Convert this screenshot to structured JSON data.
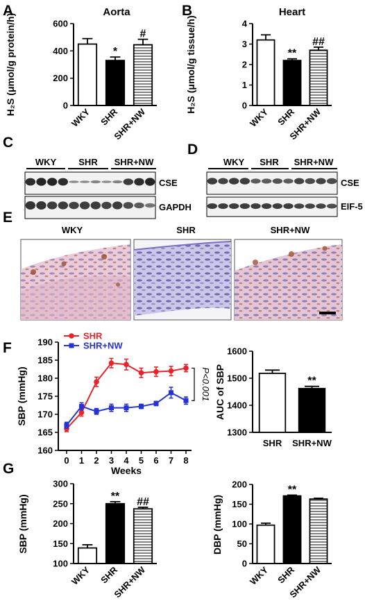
{
  "panels": {
    "A": "A",
    "B": "B",
    "C": "C",
    "D": "D",
    "E": "E",
    "F": "F",
    "G": "G"
  },
  "chart_data": [
    {
      "panel": "A",
      "type": "bar",
      "title": "Aorta",
      "ylabel": "H₂S (μmol/g protein/h)",
      "categories": [
        "WKY",
        "SHR",
        "SHR+NW"
      ],
      "values": [
        450,
        330,
        445
      ],
      "errors": [
        40,
        25,
        40
      ],
      "fills": [
        "open",
        "solid",
        "hatched"
      ],
      "ylim": [
        0,
        600
      ],
      "yticks": [
        "0",
        "200",
        "400",
        "600"
      ],
      "ytick_values": [
        0,
        200,
        400,
        600
      ],
      "significance": [
        "",
        "*",
        "#"
      ]
    },
    {
      "panel": "B",
      "type": "bar",
      "title": "Heart",
      "ylabel": "H₂S (μmol/g tissue/h)",
      "categories": [
        "WKY",
        "SHR",
        "SHR+NW"
      ],
      "values": [
        3.2,
        2.2,
        2.7
      ],
      "errors": [
        0.25,
        0.08,
        0.15
      ],
      "fills": [
        "open",
        "solid",
        "hatched"
      ],
      "ylim": [
        0,
        4
      ],
      "yticks": [
        "0",
        "1",
        "2",
        "3",
        "4"
      ],
      "ytick_values": [
        0,
        1,
        2,
        3,
        4
      ],
      "significance": [
        "",
        "**",
        "##"
      ]
    },
    {
      "panel": "F",
      "type": "line",
      "xlabel": "Weeks",
      "ylabel": "SBP (mmHg)",
      "x": [
        0,
        1,
        2,
        3,
        4,
        5,
        6,
        7,
        8
      ],
      "xticks": [
        "0",
        "1",
        "2",
        "3",
        "4",
        "5",
        "6",
        "7",
        "8"
      ],
      "ylim": [
        160,
        190
      ],
      "yticks": [
        "160",
        "165",
        "170",
        "175",
        "180",
        "185",
        "190"
      ],
      "ytick_values": [
        160,
        165,
        170,
        175,
        180,
        185,
        190
      ],
      "series": [
        {
          "name": "SHR",
          "color": "#e8232a",
          "values": [
            166.0,
            170.5,
            179.0,
            184.2,
            183.8,
            181.5,
            181.8,
            182.0,
            182.8
          ],
          "errors": [
            0.8,
            1.0,
            1.3,
            1.3,
            1.5,
            1.3,
            1.3,
            1.3,
            1.0
          ]
        },
        {
          "name": "SHR+NW",
          "color": "#2533d6",
          "values": [
            167.0,
            172.2,
            170.8,
            171.8,
            171.8,
            172.2,
            173.0,
            176.0,
            173.8
          ],
          "errors": [
            0.8,
            1.0,
            0.8,
            1.0,
            1.0,
            0.6,
            0.6,
            1.5,
            1.0
          ]
        }
      ],
      "annotation": "P<0.001"
    },
    {
      "panel": "F-right",
      "type": "bar",
      "ylabel": "AUC of SBP",
      "categories": [
        "SHR",
        "SHR+NW"
      ],
      "values": [
        1518,
        1462
      ],
      "errors": [
        12,
        8
      ],
      "fills": [
        "open",
        "solid"
      ],
      "ylim": [
        1300,
        1600
      ],
      "yticks": [
        "1300",
        "1400",
        "1500",
        "1600"
      ],
      "ytick_values": [
        1300,
        1400,
        1500,
        1600
      ],
      "significance": [
        "",
        "**"
      ]
    },
    {
      "panel": "G",
      "type": "bar",
      "ylabel": "SBP (mmHg)",
      "categories": [
        "WKY",
        "SHR",
        "SHR+NW"
      ],
      "values": [
        139,
        250,
        237
      ],
      "errors": [
        8,
        5,
        4
      ],
      "fills": [
        "open",
        "solid",
        "hatched"
      ],
      "ylim": [
        100,
        300
      ],
      "yticks": [
        "100",
        "150",
        "200",
        "250",
        "300"
      ],
      "ytick_values": [
        100,
        150,
        200,
        250,
        300
      ],
      "significance": [
        "",
        "**",
        "##"
      ]
    },
    {
      "panel": "G-right",
      "type": "bar",
      "ylabel": "DBP (mmHg)",
      "categories": [
        "WKY",
        "SHR",
        "SHR+NW"
      ],
      "values": [
        97,
        171,
        163
      ],
      "errors": [
        5,
        2,
        2
      ],
      "fills": [
        "open",
        "solid",
        "hatched"
      ],
      "ylim": [
        0,
        200
      ],
      "yticks": [
        "0",
        "50",
        "100",
        "150",
        "200"
      ],
      "ytick_values": [
        0,
        50,
        100,
        150,
        200
      ],
      "significance": [
        "",
        "**",
        ""
      ]
    }
  ],
  "blots": {
    "C": {
      "groups": [
        "WKY",
        "SHR",
        "SHR+NW"
      ],
      "rows": [
        "CSE",
        "GAPDH"
      ]
    },
    "D": {
      "groups": [
        "WKY",
        "SHR",
        "SHR+NW"
      ],
      "rows": [
        "CSE",
        "EIF-5"
      ]
    }
  },
  "histology": {
    "labels": [
      "WKY",
      "SHR",
      "SHR+NW"
    ]
  }
}
